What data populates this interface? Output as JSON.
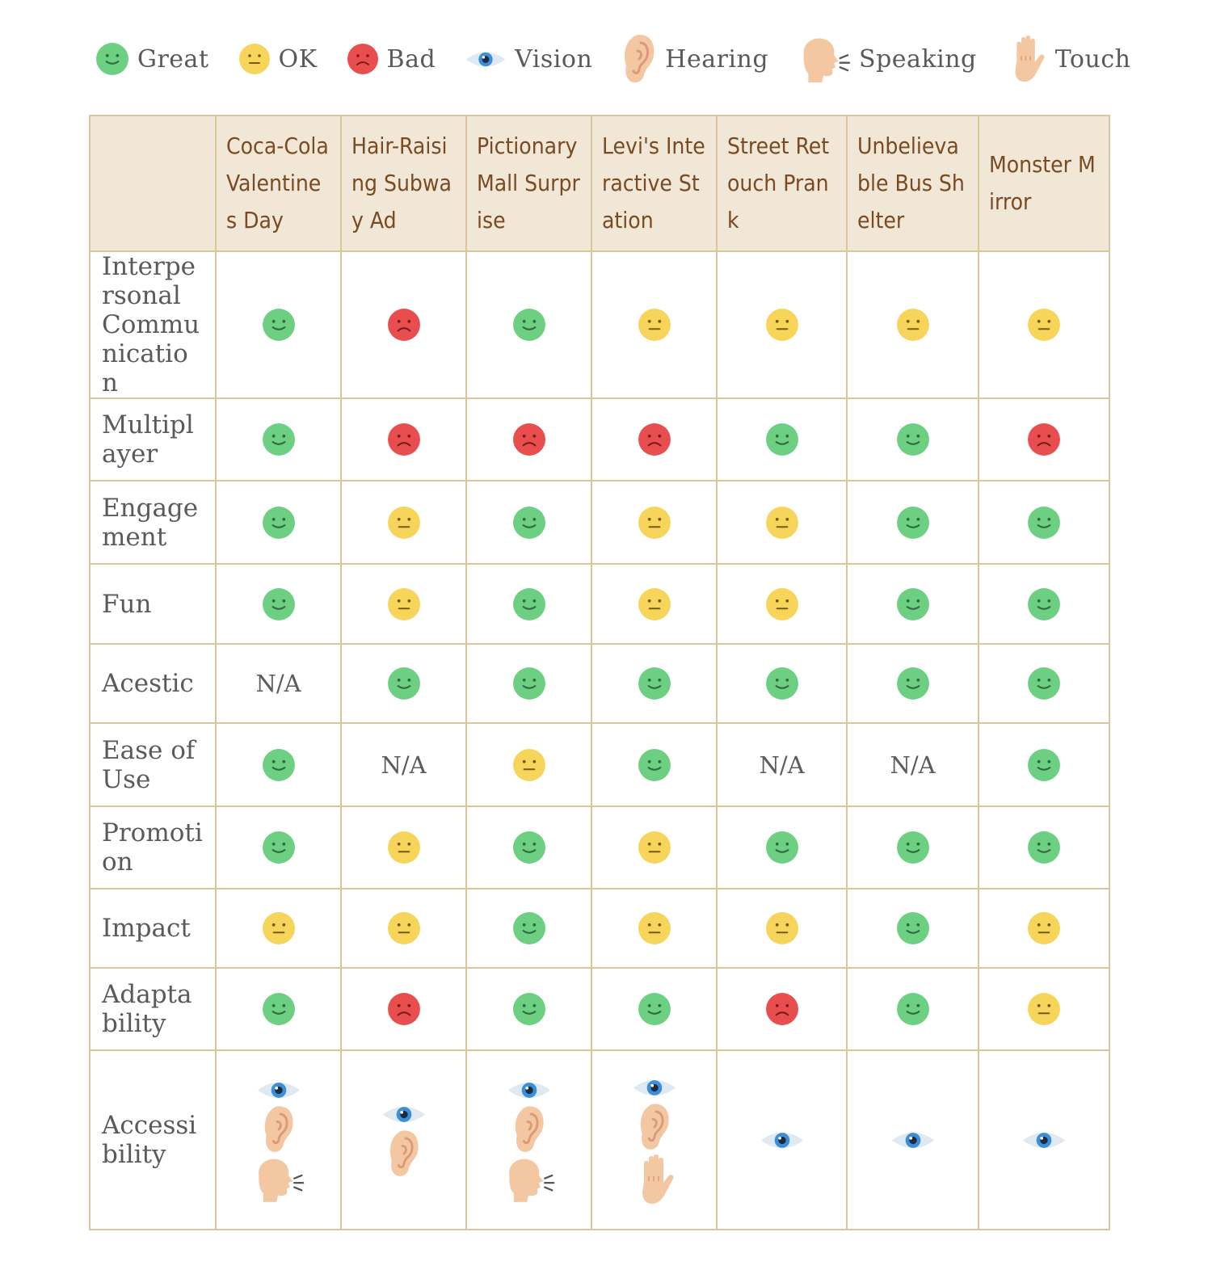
{
  "legend": {
    "items": [
      {
        "icon": "great-face-icon",
        "label": "Great"
      },
      {
        "icon": "ok-face-icon",
        "label": "OK"
      },
      {
        "icon": "bad-face-icon",
        "label": "Bad"
      },
      {
        "icon": "eye-icon",
        "label": "Vision"
      },
      {
        "icon": "ear-icon",
        "label": "Hearing"
      },
      {
        "icon": "speaking-head-icon",
        "label": "Speaking"
      },
      {
        "icon": "hand-icon",
        "label": "Touch"
      }
    ]
  },
  "colors": {
    "great": "#6ccf82",
    "ok": "#f7d45a",
    "bad": "#e94e4e",
    "header_bg": "#f0e7d6",
    "border": "#d9c69b",
    "header_text": "#7a4a22"
  },
  "table": {
    "columns": [
      "Coca-Cola Valentines Day",
      "Hair-Raising Subway Ad",
      "Pictionary Mall Surprise",
      "Levi's Interactive Station",
      "Street Retouch Prank",
      "Unbelievable Bus Shelter",
      "Monster Mirror"
    ],
    "rows": [
      {
        "label": "Interpersonal Communication",
        "values": [
          "great",
          "bad",
          "great",
          "ok",
          "ok",
          "ok",
          "ok"
        ]
      },
      {
        "label": "Multiplayer",
        "values": [
          "great",
          "bad",
          "bad",
          "bad",
          "great",
          "great",
          "bad"
        ]
      },
      {
        "label": "Engagement",
        "values": [
          "great",
          "ok",
          "great",
          "ok",
          "ok",
          "great",
          "great"
        ]
      },
      {
        "label": "Fun",
        "values": [
          "great",
          "ok",
          "great",
          "ok",
          "ok",
          "great",
          "great"
        ]
      },
      {
        "label": "Acestic",
        "values": [
          "N/A",
          "great",
          "great",
          "great",
          "great",
          "great",
          "great"
        ]
      },
      {
        "label": "Ease of Use",
        "values": [
          "great",
          "N/A",
          "ok",
          "great",
          "N/A",
          "N/A",
          "great"
        ]
      },
      {
        "label": "Promotion",
        "values": [
          "great",
          "ok",
          "great",
          "ok",
          "great",
          "great",
          "great"
        ]
      },
      {
        "label": "Impact",
        "values": [
          "ok",
          "ok",
          "great",
          "ok",
          "ok",
          "great",
          "ok"
        ]
      },
      {
        "label": "Adaptability",
        "values": [
          "great",
          "bad",
          "great",
          "great",
          "bad",
          "great",
          "ok"
        ]
      }
    ],
    "accessibility": {
      "label": "Accessibility",
      "values": [
        [
          "vision",
          "hearing",
          "speaking"
        ],
        [
          "vision",
          "hearing"
        ],
        [
          "vision",
          "hearing",
          "speaking"
        ],
        [
          "vision",
          "hearing",
          "touch"
        ],
        [
          "vision"
        ],
        [
          "vision"
        ],
        [
          "vision"
        ]
      ]
    }
  }
}
